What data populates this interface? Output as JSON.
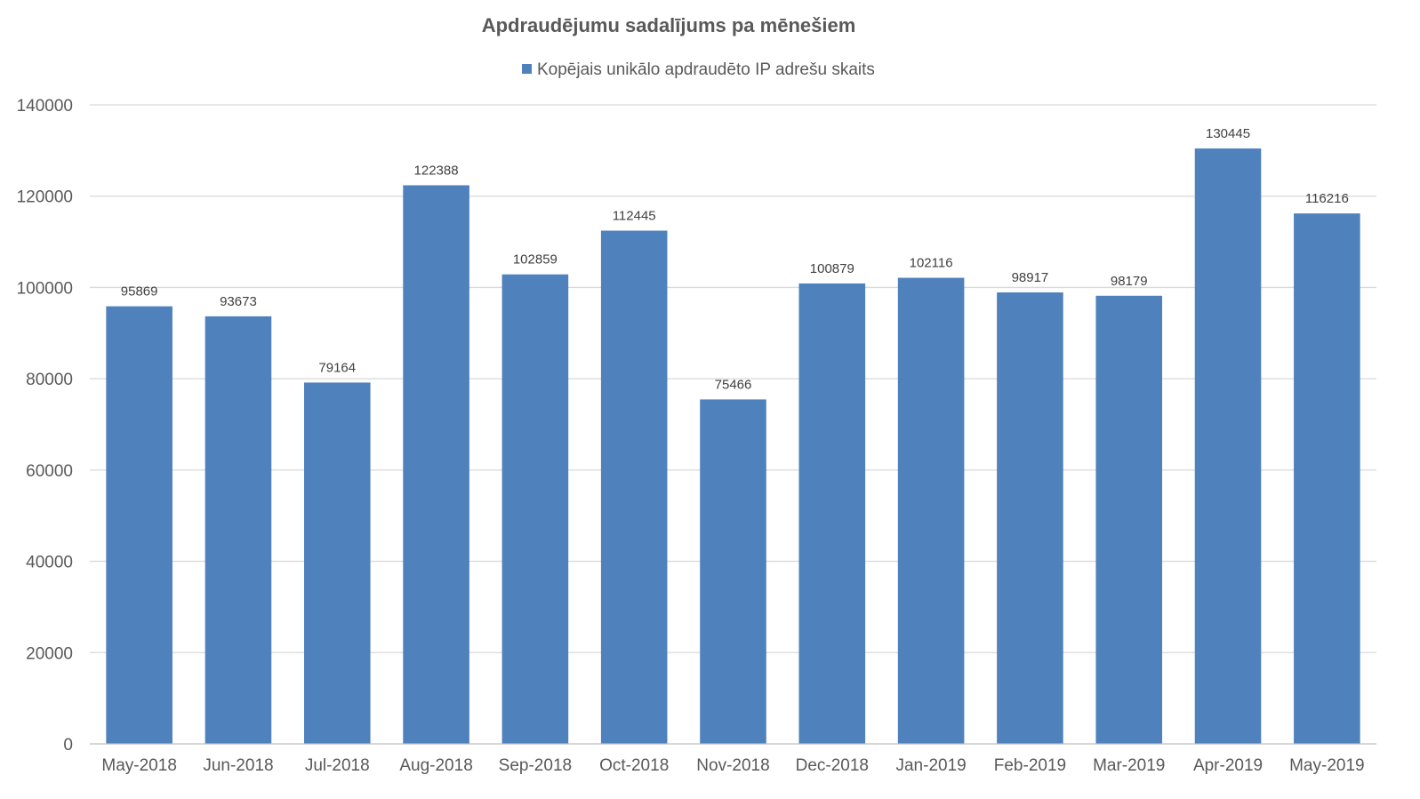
{
  "chart_data": {
    "type": "bar",
    "title": "Apdraudējumu sadalījums pa mēnešiem",
    "categories": [
      "May-2018",
      "Jun-2018",
      "Jul-2018",
      "Aug-2018",
      "Sep-2018",
      "Oct-2018",
      "Nov-2018",
      "Dec-2018",
      "Jan-2019",
      "Feb-2019",
      "Mar-2019",
      "Apr-2019",
      "May-2019"
    ],
    "series": [
      {
        "name": "Kopējais unikālo apdraudēto IP adrešu skaits",
        "color": "#4f81bd",
        "values": [
          95869,
          93673,
          79164,
          122388,
          102859,
          112445,
          75466,
          100879,
          102116,
          98917,
          98179,
          130445,
          116216
        ]
      }
    ],
    "ylim": [
      0,
      140000
    ],
    "yticks": [
      0,
      20000,
      40000,
      60000,
      80000,
      100000,
      120000,
      140000
    ],
    "grid": true,
    "legend_position": "top",
    "data_labels": true
  }
}
